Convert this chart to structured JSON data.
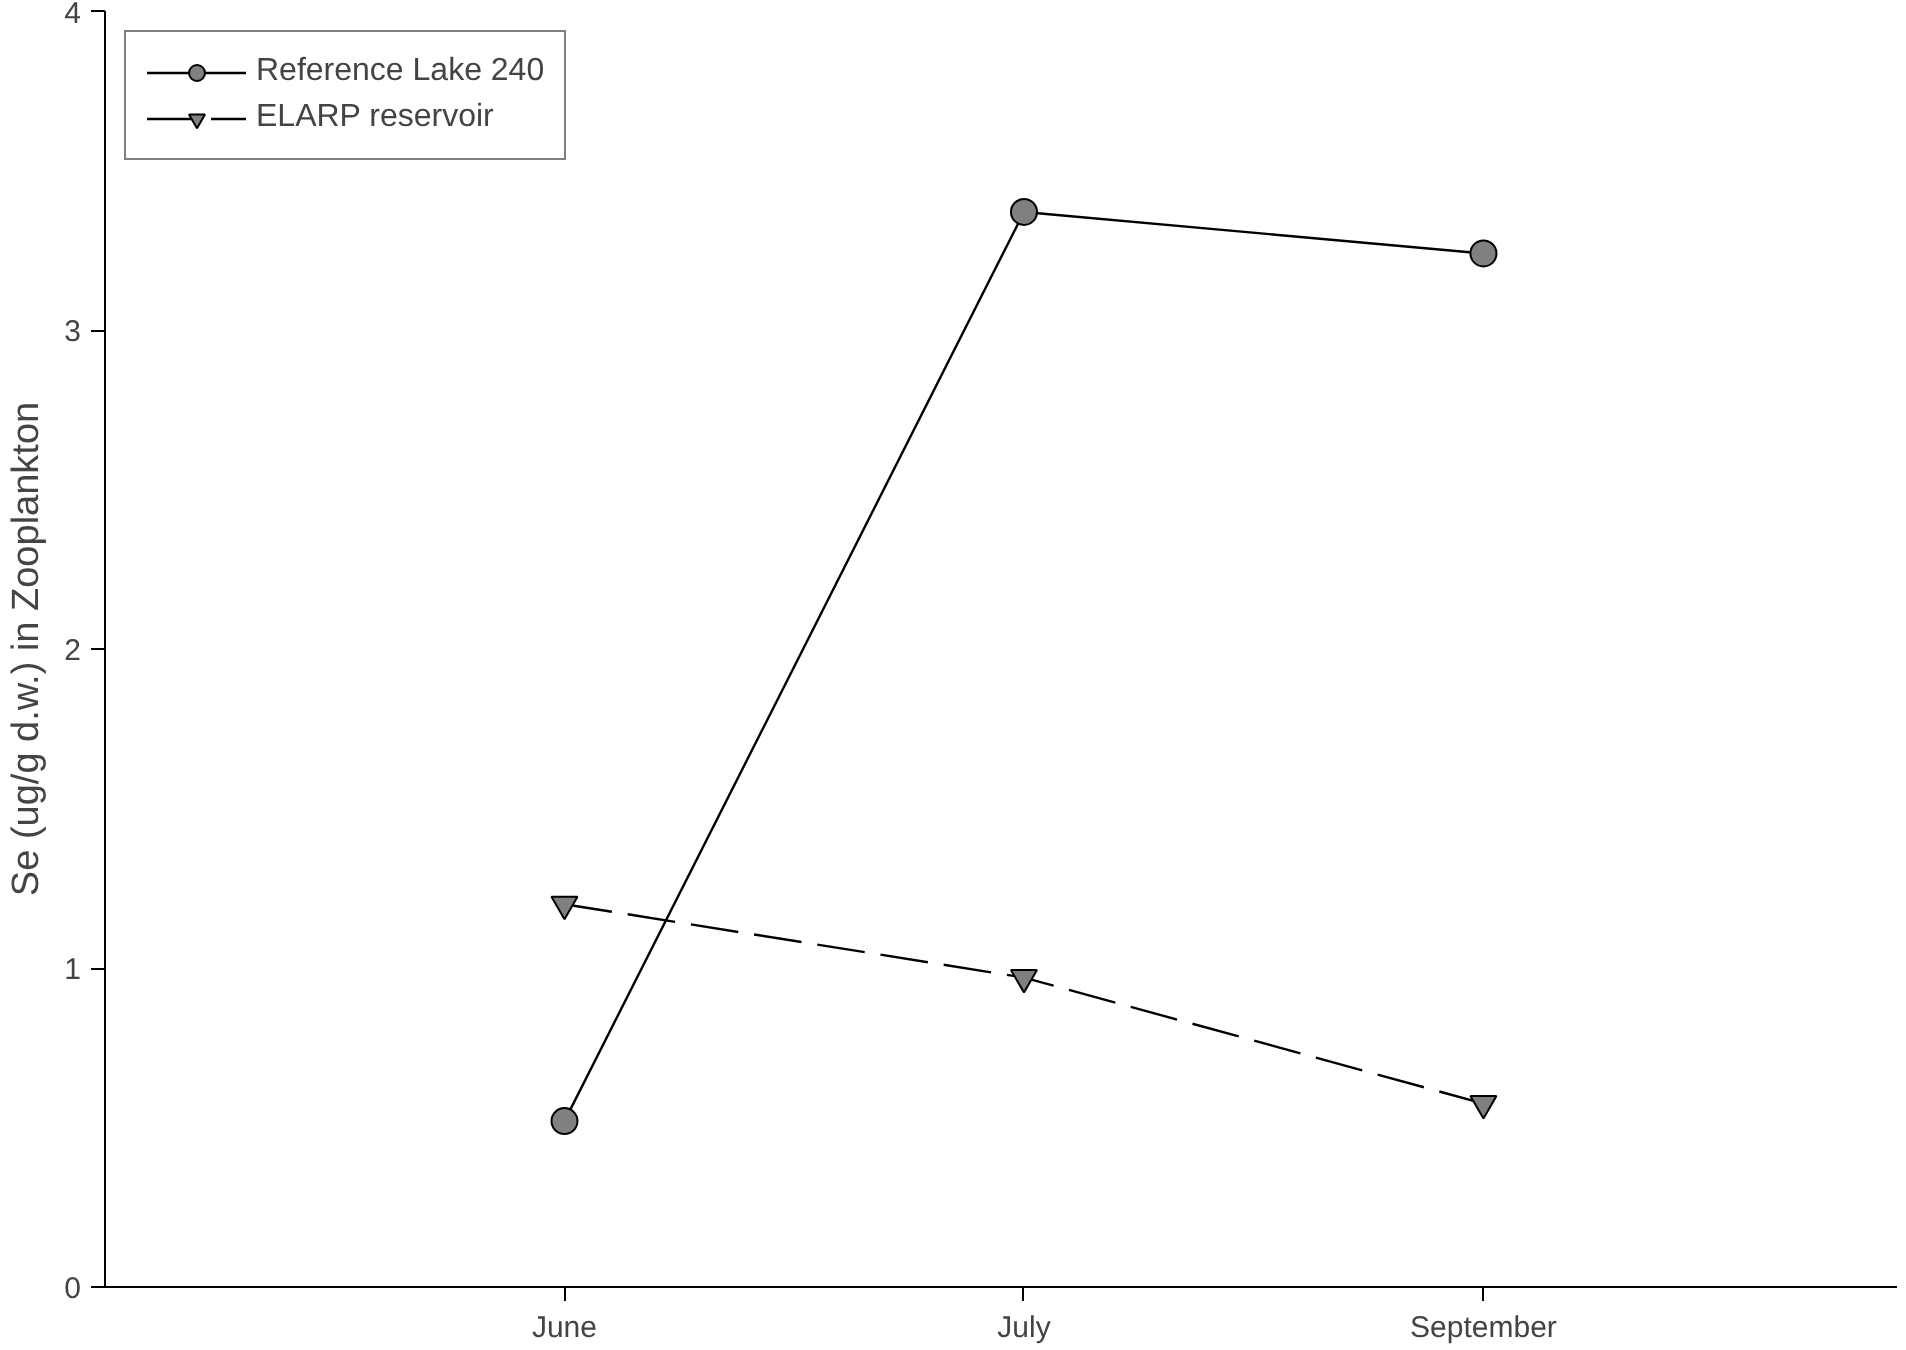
{
  "chart_data": {
    "type": "line",
    "ylabel": "Se (ug/g d.w.) in Zooplankton",
    "categories": [
      "June",
      "July",
      "September"
    ],
    "ylim": [
      0,
      4
    ],
    "yticks": [
      0,
      1,
      2,
      3,
      4
    ],
    "grid": false,
    "legend": "top left",
    "series": [
      {
        "name": "Reference Lake 240",
        "color": "#000000",
        "values": [
          0.52,
          3.37,
          3.24
        ],
        "marker": "circle",
        "line_style": "solid"
      },
      {
        "name": "ELARP reservoir",
        "color": "#000000",
        "values": [
          1.2,
          0.97,
          0.575
        ],
        "marker": "triangle",
        "line_style": "dashed"
      }
    ]
  }
}
